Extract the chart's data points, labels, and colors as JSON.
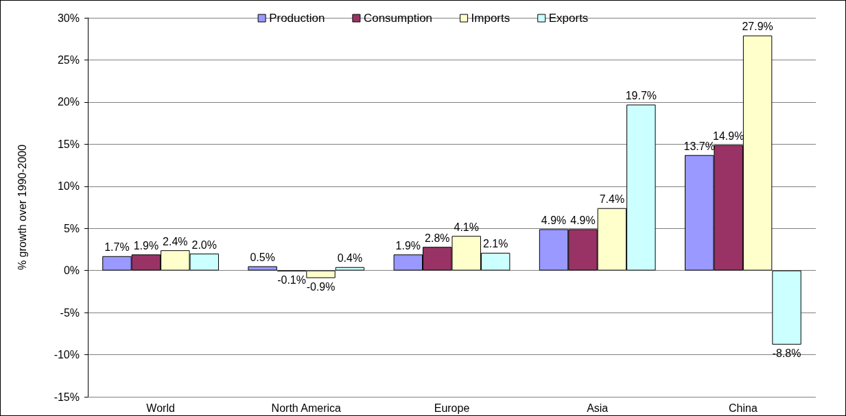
{
  "chart_data": {
    "type": "bar",
    "ylabel": "% growth over 1990-2000",
    "categories": [
      "World",
      "North America",
      "Europe",
      "Asia",
      "China"
    ],
    "series": [
      {
        "name": "Production",
        "color": "#9999ff",
        "values": [
          1.7,
          0.5,
          1.9,
          4.9,
          13.7
        ],
        "value_labels": [
          "1.7%",
          "0.5%",
          "1.9%",
          "4.9%",
          "13.7%"
        ]
      },
      {
        "name": "Consumption",
        "color": "#993366",
        "values": [
          1.9,
          -0.1,
          2.8,
          4.9,
          14.9
        ],
        "value_labels": [
          "1.9%",
          "-0.1%",
          "2.8%",
          "4.9%",
          "14.9%"
        ]
      },
      {
        "name": "Imports",
        "color": "#ffffcc",
        "values": [
          2.4,
          -0.9,
          4.1,
          7.4,
          27.9
        ],
        "value_labels": [
          "2.4%",
          "-0.9%",
          "4.1%",
          "7.4%",
          "27.9%"
        ]
      },
      {
        "name": "Exports",
        "color": "#ccffff",
        "values": [
          2.0,
          0.4,
          2.1,
          19.7,
          -8.8
        ],
        "value_labels": [
          "2.0%",
          "0.4%",
          "2.1%",
          "19.7%",
          "-8.8%"
        ]
      }
    ],
    "ylim": [
      -15,
      30
    ],
    "yticks": [
      {
        "value": -15,
        "label": "-15%"
      },
      {
        "value": -10,
        "label": "-10%"
      },
      {
        "value": -5,
        "label": "-5%"
      },
      {
        "value": 0,
        "label": "0%"
      },
      {
        "value": 5,
        "label": "5%"
      },
      {
        "value": 10,
        "label": "10%"
      },
      {
        "value": 15,
        "label": "15%"
      },
      {
        "value": 20,
        "label": "20%"
      },
      {
        "value": 25,
        "label": "25%"
      },
      {
        "value": 30,
        "label": "30%"
      }
    ],
    "grid": "y",
    "legend": "top"
  }
}
